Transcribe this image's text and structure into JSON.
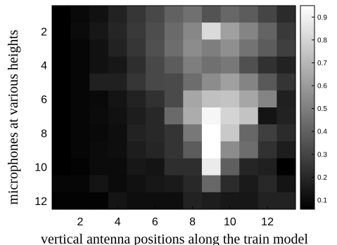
{
  "chart_data": {
    "type": "heatmap",
    "xlabel": "vertical antenna positions along the train model",
    "ylabel": "microphones at various heights",
    "x_ticks": [
      2,
      4,
      6,
      8,
      10,
      12
    ],
    "y_ticks": [
      2,
      4,
      6,
      8,
      10,
      12
    ],
    "x_range": [
      1,
      13
    ],
    "y_range": [
      1,
      12
    ],
    "colorbar": {
      "colormap": "gray",
      "range": [
        0.06,
        0.95
      ],
      "ticks": [
        "0.1",
        "0.2",
        "0.3",
        "0.4",
        "0.5",
        "0.6",
        "0.7",
        "0.8",
        "0.9"
      ]
    },
    "values": [
      [
        0.06,
        0.09,
        0.12,
        0.18,
        0.25,
        0.31,
        0.4,
        0.45,
        0.35,
        0.42,
        0.38,
        0.3,
        0.21
      ],
      [
        0.06,
        0.1,
        0.14,
        0.19,
        0.26,
        0.33,
        0.43,
        0.53,
        0.82,
        0.62,
        0.52,
        0.41,
        0.26
      ],
      [
        0.06,
        0.08,
        0.12,
        0.18,
        0.25,
        0.34,
        0.44,
        0.55,
        0.5,
        0.56,
        0.46,
        0.38,
        0.28
      ],
      [
        0.06,
        0.08,
        0.12,
        0.14,
        0.22,
        0.31,
        0.38,
        0.5,
        0.45,
        0.48,
        0.34,
        0.23,
        0.18
      ],
      [
        0.06,
        0.08,
        0.17,
        0.17,
        0.25,
        0.31,
        0.32,
        0.44,
        0.55,
        0.62,
        0.52,
        0.37,
        0.24
      ],
      [
        0.06,
        0.08,
        0.09,
        0.13,
        0.18,
        0.23,
        0.32,
        0.64,
        0.73,
        0.74,
        0.64,
        0.52,
        0.17
      ],
      [
        0.06,
        0.08,
        0.1,
        0.12,
        0.16,
        0.2,
        0.43,
        0.66,
        0.92,
        0.8,
        0.74,
        0.13,
        0.18
      ],
      [
        0.06,
        0.08,
        0.09,
        0.11,
        0.18,
        0.2,
        0.24,
        0.48,
        0.95,
        0.76,
        0.42,
        0.28,
        0.21
      ],
      [
        0.06,
        0.08,
        0.1,
        0.11,
        0.16,
        0.19,
        0.24,
        0.38,
        0.95,
        0.55,
        0.44,
        0.23,
        0.16
      ],
      [
        0.06,
        0.07,
        0.1,
        0.1,
        0.14,
        0.13,
        0.22,
        0.22,
        0.88,
        0.39,
        0.19,
        0.17,
        0.06
      ],
      [
        0.08,
        0.08,
        0.13,
        0.1,
        0.12,
        0.14,
        0.15,
        0.2,
        0.42,
        0.21,
        0.15,
        0.2,
        0.13
      ],
      [
        0.07,
        0.07,
        0.07,
        0.13,
        0.11,
        0.11,
        0.11,
        0.18,
        0.16,
        0.14,
        0.14,
        0.18,
        0.18
      ]
    ]
  }
}
